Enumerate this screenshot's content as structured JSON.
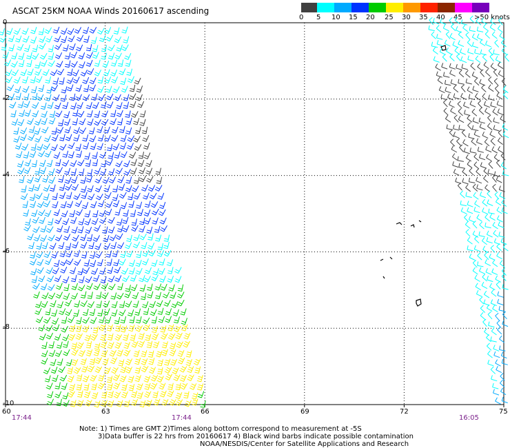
{
  "title": "ASCAT 25KM NOAA Winds 20160617 ascending",
  "colorbar": {
    "labels": [
      "0",
      "5",
      "10",
      "15",
      "20",
      "25",
      "30",
      "35",
      "40",
      "45",
      ">50 knots"
    ],
    "colors": [
      "#404040",
      "#00ffff",
      "#00aaff",
      "#0033ff",
      "#00cc00",
      "#ffee00",
      "#ff9900",
      "#ff2200",
      "#8b2500",
      "#ff00ff",
      "#7700bb"
    ]
  },
  "map": {
    "lon_range": [
      60,
      75
    ],
    "lat_range": [
      -10,
      0
    ],
    "lat_ticks": [
      "0",
      "-2",
      "-4",
      "-6",
      "-8",
      "-10"
    ],
    "lon_ticks": [
      "60",
      "63",
      "66",
      "69",
      "72",
      "75"
    ]
  },
  "times": [
    "17:44",
    "17:44",
    "16:05"
  ],
  "notes": [
    "Note: 1) Times are GMT 2)Times along bottom correspond to measurement at -5S",
    "3)Data buffer is 22 hrs from 20160617 4) Black wind barbs indicate possible contamination",
    "NOAA/NESDIS/Center for Satellite Applications and Research"
  ]
}
